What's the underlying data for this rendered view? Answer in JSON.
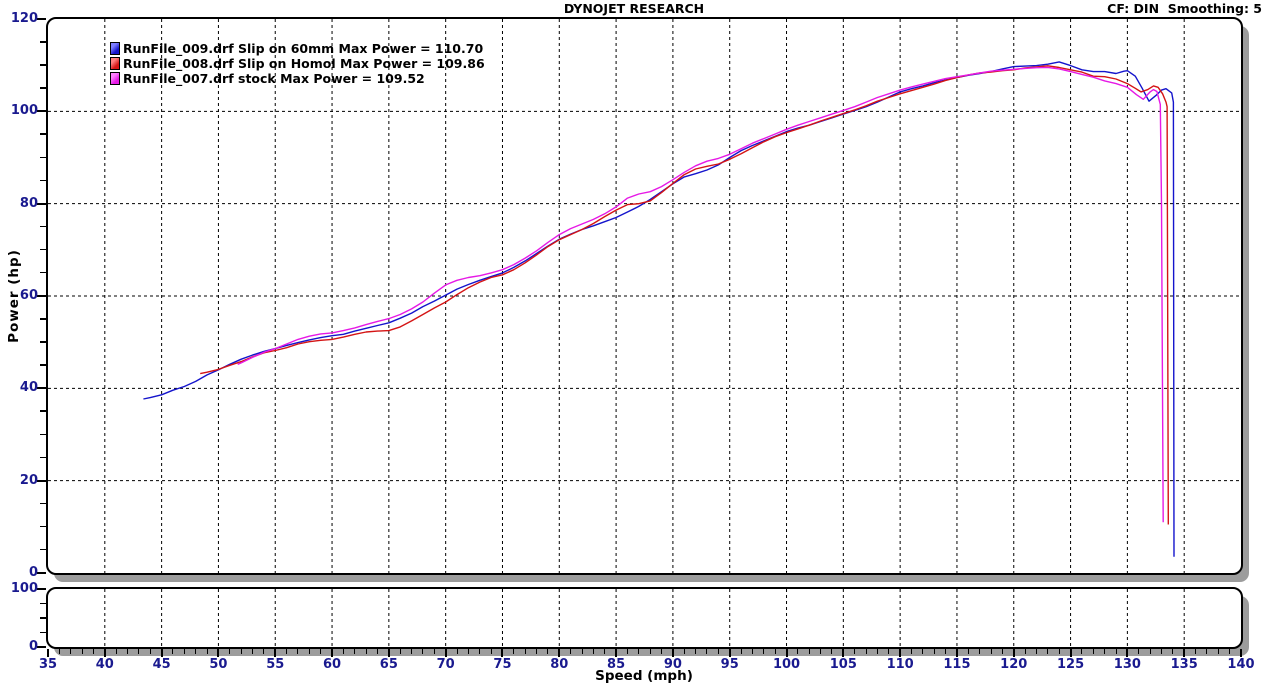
{
  "header": {
    "title": "DYNOJET RESEARCH",
    "right_info": "CF: DIN  Smoothing: 5"
  },
  "axes": {
    "x_label": "Speed (mph)",
    "y_label": "Power (hp)",
    "x_min": 35,
    "x_max": 140,
    "x_major_step": 5,
    "x_minor_step": 1,
    "y_min": 0,
    "y_max": 120,
    "y_major_step": 20,
    "y_minor_step": 5
  },
  "secondary_panel": {
    "y_min": 0,
    "y_max": 100,
    "y_labels": [
      100,
      0
    ],
    "y_minor_step": 25
  },
  "colors": {
    "grid": "#000000",
    "frame": "#000000",
    "shadow": "#9c9c9c",
    "tick_label": "#1a1a8f",
    "blue": "#1414cc",
    "blue_light": "#7d7dff",
    "red": "#d41414",
    "red_light": "#ff8080",
    "magenta": "#e619e6",
    "magenta_light": "#ff80ff"
  },
  "legend": [
    {
      "label": "RunFile_009.drf Slip on 60mm Max Power = 110.70",
      "color": "#1414cc",
      "color_light": "#7d7dff"
    },
    {
      "label": "RunFile_008.drf Slip on Homol Max Power = 109.86",
      "color": "#d41414",
      "color_light": "#ff8080"
    },
    {
      "label": "RunFile_007.drf stock Max Power = 109.52",
      "color": "#e619e6",
      "color_light": "#ff80ff"
    }
  ],
  "chart_data": {
    "type": "line",
    "title": "DYNOJET RESEARCH",
    "xlabel": "Speed (mph)",
    "ylabel": "Power (hp)",
    "xlim": [
      35,
      140
    ],
    "ylim": [
      0,
      120
    ],
    "grid": "dashed-major",
    "legend_position": "top-left",
    "correction_factor": "CF: DIN",
    "smoothing": 5,
    "series": [
      {
        "name": "RunFile_009.drf Slip on 60mm",
        "max_power": 110.7,
        "color": "#1414cc",
        "points": [
          [
            43.4,
            37.7
          ],
          [
            44,
            38
          ],
          [
            45,
            38.6
          ],
          [
            46,
            39.6
          ],
          [
            47,
            40.4
          ],
          [
            48,
            41.5
          ],
          [
            49,
            42.9
          ],
          [
            50,
            44
          ],
          [
            51,
            45.2
          ],
          [
            52,
            46.3
          ],
          [
            53,
            47.2
          ],
          [
            54,
            48
          ],
          [
            55,
            48.6
          ],
          [
            56,
            49.3
          ],
          [
            57,
            49.9
          ],
          [
            58,
            50.5
          ],
          [
            59,
            51
          ],
          [
            60,
            51.4
          ],
          [
            61,
            51.7
          ],
          [
            62,
            52.4
          ],
          [
            63,
            53
          ],
          [
            64,
            53.6
          ],
          [
            65,
            54.2
          ],
          [
            66,
            55.2
          ],
          [
            67,
            56.3
          ],
          [
            68,
            57.7
          ],
          [
            69,
            58.9
          ],
          [
            70,
            60.2
          ],
          [
            71,
            61.5
          ],
          [
            72,
            62.5
          ],
          [
            73,
            63.4
          ],
          [
            74,
            64.2
          ],
          [
            75,
            65
          ],
          [
            76,
            66.2
          ],
          [
            77,
            67.6
          ],
          [
            78,
            69.2
          ],
          [
            79,
            70.8
          ],
          [
            80,
            72.3
          ],
          [
            81,
            73.4
          ],
          [
            82,
            74.4
          ],
          [
            83,
            75.2
          ],
          [
            84,
            76.1
          ],
          [
            85,
            77
          ],
          [
            86,
            78.2
          ],
          [
            87,
            79.4
          ],
          [
            88,
            80.9
          ],
          [
            89,
            82.6
          ],
          [
            90,
            84.3
          ],
          [
            91,
            85.8
          ],
          [
            92,
            86.5
          ],
          [
            93,
            87.3
          ],
          [
            94,
            88.4
          ],
          [
            95,
            90
          ],
          [
            96,
            91.5
          ],
          [
            97,
            92.6
          ],
          [
            98,
            93.6
          ],
          [
            99,
            94.6
          ],
          [
            100,
            95.6
          ],
          [
            101,
            96.4
          ],
          [
            102,
            97
          ],
          [
            103,
            97.8
          ],
          [
            104,
            98.6
          ],
          [
            105,
            99.4
          ],
          [
            106,
            100.2
          ],
          [
            107,
            101
          ],
          [
            108,
            102
          ],
          [
            109,
            103.1
          ],
          [
            110,
            104.2
          ],
          [
            111,
            104.9
          ],
          [
            112,
            105.5
          ],
          [
            113,
            106.2
          ],
          [
            114,
            106.8
          ],
          [
            115,
            107.3
          ],
          [
            116,
            107.8
          ],
          [
            117,
            108.2
          ],
          [
            118,
            108.6
          ],
          [
            119,
            109.2
          ],
          [
            120,
            109.7
          ],
          [
            121,
            109.8
          ],
          [
            122,
            109.9
          ],
          [
            123,
            110.2
          ],
          [
            124,
            110.7
          ],
          [
            125,
            109.9
          ],
          [
            126,
            109
          ],
          [
            127,
            108.6
          ],
          [
            128,
            108.6
          ],
          [
            129,
            108.2
          ],
          [
            129.7,
            108.7
          ],
          [
            130,
            108.8
          ],
          [
            130.7,
            107.6
          ],
          [
            131.3,
            105
          ],
          [
            131.9,
            102.2
          ],
          [
            132.5,
            103.4
          ],
          [
            133,
            104.6
          ],
          [
            133.4,
            104.9
          ],
          [
            133.9,
            104
          ],
          [
            134.05,
            102
          ],
          [
            134.1,
            3.5
          ]
        ]
      },
      {
        "name": "RunFile_008.drf Slip on Homol",
        "max_power": 109.86,
        "color": "#d41414",
        "points": [
          [
            48.4,
            43.2
          ],
          [
            49,
            43.5
          ],
          [
            50,
            44.1
          ],
          [
            51,
            45
          ],
          [
            52,
            45.8
          ],
          [
            53,
            46.8
          ],
          [
            54,
            47.7
          ],
          [
            55,
            48.2
          ],
          [
            56,
            48.8
          ],
          [
            57,
            49.6
          ],
          [
            58,
            50.1
          ],
          [
            59,
            50.4
          ],
          [
            60,
            50.6
          ],
          [
            61,
            51.1
          ],
          [
            62,
            51.7
          ],
          [
            63,
            52.2
          ],
          [
            64,
            52.4
          ],
          [
            65,
            52.5
          ],
          [
            66,
            53.3
          ],
          [
            67,
            54.6
          ],
          [
            68,
            56
          ],
          [
            69,
            57.4
          ],
          [
            70,
            58.7
          ],
          [
            71,
            60.3
          ],
          [
            72,
            61.8
          ],
          [
            73,
            63
          ],
          [
            74,
            64
          ],
          [
            75,
            64.6
          ],
          [
            76,
            65.7
          ],
          [
            77,
            67.2
          ],
          [
            78,
            68.9
          ],
          [
            79,
            70.7
          ],
          [
            80,
            72.2
          ],
          [
            81,
            73.3
          ],
          [
            82,
            74.4
          ],
          [
            83,
            75.7
          ],
          [
            84,
            77.2
          ],
          [
            85,
            78.6
          ],
          [
            86,
            79.8
          ],
          [
            87,
            80
          ],
          [
            88,
            80.6
          ],
          [
            89,
            82.4
          ],
          [
            90,
            84.4
          ],
          [
            91,
            86.3
          ],
          [
            92,
            87.5
          ],
          [
            93,
            88.1
          ],
          [
            94,
            88.6
          ],
          [
            95,
            89.6
          ],
          [
            96,
            90.8
          ],
          [
            97,
            92.1
          ],
          [
            98,
            93.4
          ],
          [
            99,
            94.5
          ],
          [
            100,
            95.4
          ],
          [
            101,
            96.2
          ],
          [
            102,
            97
          ],
          [
            103,
            97.9
          ],
          [
            104,
            98.7
          ],
          [
            105,
            99.5
          ],
          [
            106,
            100.3
          ],
          [
            107,
            101.2
          ],
          [
            108,
            102.2
          ],
          [
            109,
            103
          ],
          [
            110,
            103.8
          ],
          [
            111,
            104.5
          ],
          [
            112,
            105.2
          ],
          [
            113,
            105.9
          ],
          [
            114,
            106.7
          ],
          [
            115,
            107.3
          ],
          [
            116,
            107.9
          ],
          [
            117,
            108.3
          ],
          [
            118,
            108.5
          ],
          [
            119,
            108.8
          ],
          [
            120,
            109
          ],
          [
            121,
            109.4
          ],
          [
            122,
            109.6
          ],
          [
            123,
            109.86
          ],
          [
            124,
            109.5
          ],
          [
            125,
            109
          ],
          [
            126,
            108.5
          ],
          [
            127,
            107.6
          ],
          [
            128,
            107.5
          ],
          [
            129,
            107
          ],
          [
            130,
            106
          ],
          [
            130.7,
            105
          ],
          [
            131.2,
            104.2
          ],
          [
            131.8,
            104.7
          ],
          [
            132.3,
            105.5
          ],
          [
            132.7,
            105.2
          ],
          [
            133.1,
            103.8
          ],
          [
            133.4,
            102
          ],
          [
            133.5,
            101
          ],
          [
            133.6,
            10.5
          ]
        ]
      },
      {
        "name": "RunFile_007.drf stock",
        "max_power": 109.52,
        "color": "#e619e6",
        "points": [
          [
            51.7,
            45.2
          ],
          [
            52,
            45.5
          ],
          [
            53,
            46.7
          ],
          [
            54,
            47.8
          ],
          [
            55,
            48.6
          ],
          [
            56,
            49.6
          ],
          [
            57,
            50.6
          ],
          [
            58,
            51.3
          ],
          [
            59,
            51.8
          ],
          [
            60,
            52
          ],
          [
            61,
            52.5
          ],
          [
            62,
            53.1
          ],
          [
            63,
            53.8
          ],
          [
            64,
            54.5
          ],
          [
            65,
            55.1
          ],
          [
            66,
            56
          ],
          [
            67,
            57.2
          ],
          [
            68,
            58.7
          ],
          [
            69,
            60.6
          ],
          [
            70,
            62.4
          ],
          [
            71,
            63.4
          ],
          [
            72,
            64
          ],
          [
            73,
            64.4
          ],
          [
            74,
            65
          ],
          [
            75,
            65.7
          ],
          [
            76,
            66.8
          ],
          [
            77,
            68.2
          ],
          [
            78,
            69.8
          ],
          [
            79,
            71.6
          ],
          [
            80,
            73.3
          ],
          [
            81,
            74.6
          ],
          [
            82,
            75.6
          ],
          [
            83,
            76.6
          ],
          [
            84,
            77.8
          ],
          [
            85,
            79.3
          ],
          [
            86,
            81.2
          ],
          [
            87,
            82.1
          ],
          [
            88,
            82.6
          ],
          [
            89,
            83.7
          ],
          [
            90,
            85.2
          ],
          [
            91,
            86.8
          ],
          [
            92,
            88.2
          ],
          [
            93,
            89.2
          ],
          [
            94,
            89.8
          ],
          [
            95,
            90.7
          ],
          [
            96,
            91.9
          ],
          [
            97,
            93.1
          ],
          [
            98,
            94.1
          ],
          [
            99,
            95.1
          ],
          [
            100,
            96.1
          ],
          [
            101,
            97
          ],
          [
            102,
            97.8
          ],
          [
            103,
            98.6
          ],
          [
            104,
            99.4
          ],
          [
            105,
            100.2
          ],
          [
            106,
            101
          ],
          [
            107,
            102
          ],
          [
            108,
            103
          ],
          [
            109,
            103.8
          ],
          [
            110,
            104.6
          ],
          [
            111,
            105.3
          ],
          [
            112,
            105.9
          ],
          [
            113,
            106.5
          ],
          [
            114,
            107.1
          ],
          [
            115,
            107.5
          ],
          [
            116,
            107.9
          ],
          [
            117,
            108.3
          ],
          [
            118,
            108.7
          ],
          [
            119,
            108.9
          ],
          [
            120,
            109.1
          ],
          [
            121,
            109.3
          ],
          [
            122,
            109.45
          ],
          [
            123,
            109.52
          ],
          [
            124,
            109.2
          ],
          [
            125,
            108.6
          ],
          [
            126,
            108
          ],
          [
            127,
            107.4
          ],
          [
            128,
            106.6
          ],
          [
            129,
            106
          ],
          [
            130,
            105.2
          ],
          [
            130.8,
            103.6
          ],
          [
            131.4,
            102.6
          ],
          [
            132,
            104.2
          ],
          [
            132.3,
            104.7
          ],
          [
            132.6,
            104.3
          ],
          [
            132.9,
            101.5
          ],
          [
            133,
            80
          ],
          [
            133.15,
            11
          ]
        ]
      }
    ],
    "secondary_panel": {
      "ylim": [
        0,
        100
      ],
      "y_tick_labels": [
        100,
        0
      ],
      "series": []
    }
  }
}
